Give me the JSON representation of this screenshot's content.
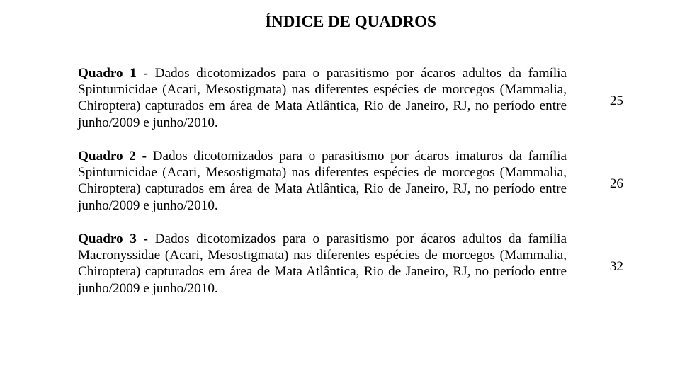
{
  "title": "ÍNDICE DE QUADROS",
  "entries": [
    {
      "lead": "Quadro 1 - ",
      "body": "Dados dicotomizados para o parasitismo por ácaros adultos da família Spinturnicidae (Acari, Mesostigmata) nas diferentes espécies de morcegos (Mammalia, Chiroptera) capturados em área de Mata Atlântica, Rio de Janeiro, RJ, no período entre junho/2009 e junho/2010.",
      "page": "25"
    },
    {
      "lead": "Quadro 2 - ",
      "body": "Dados dicotomizados para o parasitismo por ácaros imaturos da família Spinturnicidae (Acari, Mesostigmata) nas diferentes espécies de morcegos (Mammalia, Chiroptera) capturados em área de Mata Atlântica, Rio de Janeiro, RJ, no período entre junho/2009 e junho/2010.",
      "page": "26"
    },
    {
      "lead": "Quadro 3 - ",
      "body": "Dados dicotomizados para o parasitismo por ácaros adultos da família Macronyssidae (Acari, Mesostigmata) nas diferentes espécies de morcegos (Mammalia, Chiroptera) capturados em área de Mata Atlântica, Rio de Janeiro, RJ, no período entre junho/2009 e junho/2010.",
      "page": "32"
    }
  ]
}
